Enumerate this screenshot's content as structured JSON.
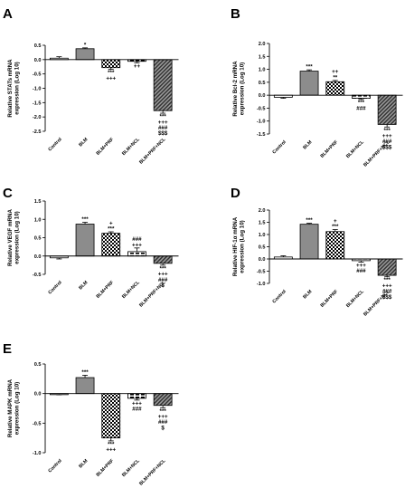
{
  "chart_data": [
    {
      "panel": "A",
      "type": "bar",
      "ylabel": "Relative STATs mRNA expression (Log 10)",
      "ylim": [
        -2.5,
        0.5
      ],
      "yticks": [
        0.5,
        0.0,
        -0.5,
        -1.0,
        -1.5,
        -2.0,
        -2.5
      ],
      "ytick_labels": [
        "0.5",
        "0.0",
        "-0.5",
        "-1.0",
        "-1.5",
        "-2.0",
        "-2.5"
      ],
      "categories": [
        "Control",
        "BLM",
        "BLM+PRF",
        "BLM+NCL",
        "BLM+PRF+NCL"
      ],
      "values": [
        0.05,
        0.38,
        -0.28,
        -0.06,
        -1.78
      ],
      "errors": [
        0.05,
        0.03,
        0.06,
        0.05,
        0.09
      ],
      "patterns": [
        "white",
        "gray",
        "check",
        "dash",
        "diag"
      ],
      "annotations": [
        [],
        [
          "*"
        ],
        [
          "***",
          "+++"
        ],
        [
          "++"
        ],
        [
          "***",
          "+++",
          "###",
          "$$$"
        ]
      ]
    },
    {
      "panel": "B",
      "type": "bar",
      "ylabel": "Relative Bcl-2 mRNA expression (Log 10)",
      "ylim": [
        -1.5,
        2.0
      ],
      "yticks": [
        2.0,
        1.5,
        1.0,
        0.5,
        0.0,
        -0.5,
        -1.0,
        -1.5
      ],
      "ytick_labels": [
        "2.0",
        "1.5",
        "1.0",
        "0.5",
        "0.0",
        "-0.5",
        "-1.0",
        "-1.5"
      ],
      "categories": [
        "Control",
        "BLM",
        "BLM+PRF",
        "BLM+NCL",
        "BLM+PRF+NCL"
      ],
      "values": [
        -0.08,
        0.93,
        0.52,
        -0.12,
        -1.13
      ],
      "errors": [
        0.04,
        0.05,
        0.05,
        0.04,
        0.1
      ],
      "patterns": [
        "white",
        "gray",
        "check",
        "dash",
        "diag"
      ],
      "annotations": [
        [],
        [
          "***"
        ],
        [
          "++",
          "**"
        ],
        [
          "***",
          "###"
        ],
        [
          "***",
          "+++",
          "###",
          "$$$"
        ]
      ]
    },
    {
      "panel": "C",
      "type": "bar",
      "ylabel": "Relative VEGF mRNA expression (Log 10)",
      "ylim": [
        -0.5,
        1.5
      ],
      "yticks": [
        1.5,
        1.0,
        0.5,
        0.0,
        -0.5
      ],
      "ytick_labels": [
        "1.5",
        "1.0",
        "0.5",
        "0.0",
        "-0.5"
      ],
      "categories": [
        "Control",
        "BLM",
        "BLM+PRF",
        "BLM+NCL",
        "BLM+PRF+NCL"
      ],
      "values": [
        -0.05,
        0.87,
        0.62,
        0.12,
        -0.2
      ],
      "errors": [
        0.03,
        0.05,
        0.04,
        0.1,
        0.05
      ],
      "patterns": [
        "white",
        "gray",
        "check",
        "dash",
        "diag"
      ],
      "annotations": [
        [],
        [
          "***"
        ],
        [
          "+",
          "***"
        ],
        [
          "###",
          "+++"
        ],
        [
          "***",
          "+++",
          "###",
          "$"
        ]
      ]
    },
    {
      "panel": "D",
      "type": "bar",
      "ylabel": "Relative HIF-1α mRNA expression (Log 10)",
      "ylim": [
        -1.0,
        2.0
      ],
      "yticks": [
        2.0,
        1.5,
        1.0,
        0.5,
        0.0,
        -0.5,
        -1.0
      ],
      "ytick_labels": [
        "2.0",
        "1.5",
        "1.0",
        "0.5",
        "0.0",
        "-0.5",
        "-1.0"
      ],
      "categories": [
        "Control",
        "BLM",
        "BLM+PRF",
        "BLM+NCL",
        "BLM+PRF+NCL"
      ],
      "values": [
        0.08,
        1.42,
        1.12,
        -0.07,
        -0.67
      ],
      "errors": [
        0.05,
        0.04,
        0.08,
        0.06,
        0.06
      ],
      "patterns": [
        "white",
        "gray",
        "check",
        "dash",
        "diag"
      ],
      "annotations": [
        [],
        [
          "***"
        ],
        [
          "+",
          "***"
        ],
        [
          "+++",
          "###"
        ],
        [
          "***",
          "+++",
          "###",
          "$$$"
        ]
      ]
    },
    {
      "panel": "E",
      "type": "bar",
      "ylabel": "Relative MAPK mRNA expression (Log 10)",
      "ylim": [
        -1.0,
        0.5
      ],
      "yticks": [
        0.5,
        0.0,
        -0.5,
        -1.0
      ],
      "ytick_labels": [
        "0.5",
        "0.0",
        "-0.5",
        "-1.0"
      ],
      "categories": [
        "Control",
        "BLM",
        "BLM+PRF",
        "BLM+NCL",
        "BLM+PRF+NCL"
      ],
      "values": [
        -0.01,
        0.27,
        -0.75,
        -0.08,
        -0.2
      ],
      "errors": [
        0.01,
        0.04,
        0.05,
        0.03,
        0.04
      ],
      "patterns": [
        "white",
        "gray",
        "check",
        "dash",
        "diag"
      ],
      "annotations": [
        [],
        [
          "***"
        ],
        [
          "***",
          "+++"
        ],
        [
          "+++",
          "###"
        ],
        [
          "***",
          "+++",
          "###",
          "$"
        ]
      ]
    }
  ]
}
